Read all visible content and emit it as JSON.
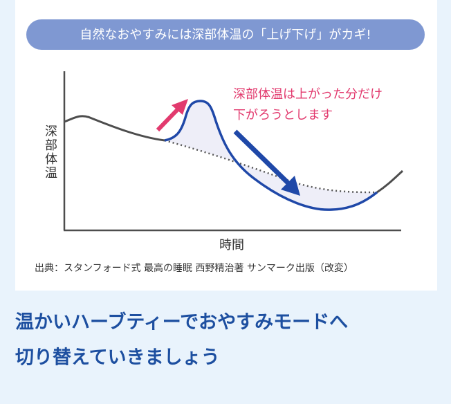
{
  "banner": "自然なおやすみには深部体温の「上げ下げ」がカギ!",
  "diagram": {
    "y_axis_label": "深部体温",
    "x_axis_label": "時間",
    "annotation": [
      "深部体温は上がった分だけ",
      "下がろうとします"
    ]
  },
  "source": "出典：スタンフォード式 最高の睡眠 西野精治著 サンマーク出版（改変）",
  "heading": [
    "温かいハーブティーでおやすみモードへ",
    "切り替えていきましょう"
  ]
}
